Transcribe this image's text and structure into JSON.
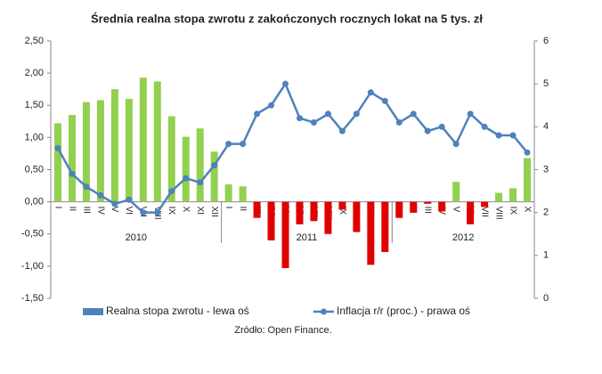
{
  "chart_data": {
    "type": "bar_line",
    "title": "Średnia realna stopa zwrotu z zakończonych rocznych lokat na 5 tys. zł",
    "groups": [
      {
        "name": "2010",
        "categories": [
          "I",
          "II",
          "III",
          "IV",
          "V",
          "VI",
          "VII",
          "VIII",
          "IX",
          "X",
          "XI",
          "XII"
        ]
      },
      {
        "name": "2011",
        "categories": [
          "I",
          "II",
          "III",
          "IV",
          "V",
          "VI",
          "VII",
          "VIII",
          "IX",
          "X",
          "XI",
          "XII"
        ]
      },
      {
        "name": "2012",
        "categories": [
          "I",
          "II",
          "III",
          "IV",
          "V",
          "VI",
          "VII",
          "VIII",
          "IX",
          "X"
        ]
      }
    ],
    "series": [
      {
        "name": "Realna stopa zwrotu - lewa oś",
        "type": "bar",
        "axis": "y",
        "color": "#4f81bd",
        "positive_color": "#92d050",
        "negative_color": "#e00000",
        "values": [
          1.22,
          1.35,
          1.55,
          1.58,
          1.75,
          1.6,
          1.93,
          1.87,
          1.33,
          1.01,
          1.14,
          0.78,
          0.27,
          0.24,
          -0.25,
          -0.6,
          -1.03,
          -0.35,
          -0.3,
          -0.5,
          -0.12,
          -0.47,
          -0.98,
          -0.78,
          -0.25,
          -0.17,
          -0.03,
          -0.15,
          0.31,
          -0.35,
          -0.08,
          0.14,
          0.21,
          0.68
        ]
      },
      {
        "name": "Inflacja r/r (proc.) - prawa oś",
        "type": "line",
        "axis": "y2",
        "color": "#4f81bd",
        "values": [
          3.5,
          2.9,
          2.6,
          2.4,
          2.2,
          2.3,
          2.0,
          2.0,
          2.5,
          2.8,
          2.7,
          3.1,
          3.6,
          3.6,
          4.3,
          4.5,
          5.0,
          4.2,
          4.1,
          4.3,
          3.9,
          4.3,
          4.8,
          4.6,
          4.1,
          4.3,
          3.9,
          4.0,
          3.6,
          4.3,
          4.0,
          3.8,
          3.8,
          3.4
        ]
      }
    ],
    "ylim": [
      -1.5,
      2.5
    ],
    "yticks": [
      {
        "value": -1.5,
        "label": "-1,50"
      },
      {
        "value": -1,
        "label": "-1,00"
      },
      {
        "value": -0.5,
        "label": "-0,50"
      },
      {
        "value": 0,
        "label": "0,00"
      },
      {
        "value": 0.5,
        "label": "0,50"
      },
      {
        "value": 1,
        "label": "1,00"
      },
      {
        "value": 1.5,
        "label": "1,50"
      },
      {
        "value": 2,
        "label": "2,00"
      },
      {
        "value": 2.5,
        "label": "2,50"
      }
    ],
    "y2lim": [
      0,
      6
    ],
    "y2ticks": [
      0,
      1,
      2,
      3,
      4,
      5,
      6
    ],
    "source": "Zródło: Open Finance."
  }
}
